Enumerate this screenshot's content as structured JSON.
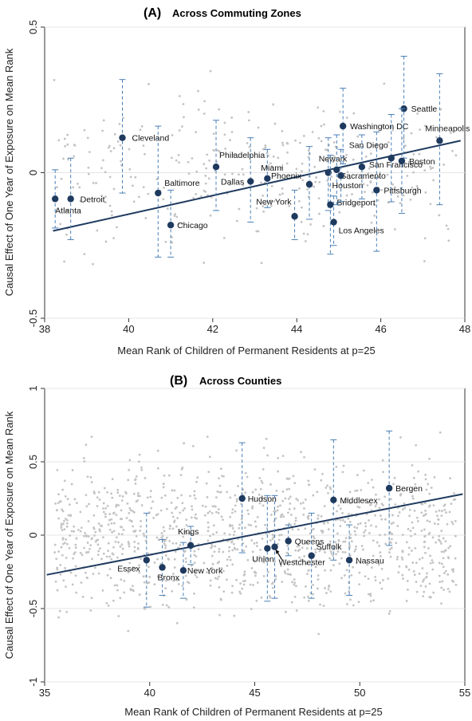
{
  "chart_data": [
    {
      "type": "scatter",
      "panel_label": "(A)",
      "title": "Across Commuting Zones",
      "xlabel": "Mean Rank of Children of Permanent Residents at p=25",
      "ylabel": "Causal Effect of One Year of Exposure on Mean Rank",
      "xlim": [
        38,
        48
      ],
      "ylim": [
        -0.5,
        0.5
      ],
      "x_ticks": [
        "38",
        "40",
        "42",
        "44",
        "46",
        "48"
      ],
      "y_ticks": [
        "-0.5",
        "0",
        "0.5"
      ],
      "grid": "horizontal",
      "fit_line": {
        "x": [
          38.2,
          47.9
        ],
        "y": [
          -0.2,
          0.11
        ]
      },
      "highlighted": [
        {
          "label": "Atlanta",
          "x": 38.25,
          "y": -0.09,
          "lo": -0.19,
          "hi": 0.01
        },
        {
          "label": "Detroit",
          "x": 38.62,
          "y": -0.09,
          "lo": -0.23,
          "hi": 0.05
        },
        {
          "label": "Cleveland",
          "x": 39.85,
          "y": 0.12,
          "lo": -0.07,
          "hi": 0.32
        },
        {
          "label": "Baltimore",
          "x": 40.7,
          "y": -0.07,
          "lo": -0.29,
          "hi": 0.16
        },
        {
          "label": "Chicago",
          "x": 41.0,
          "y": -0.18,
          "lo": -0.29,
          "hi": -0.06
        },
        {
          "label": "Philadelphia",
          "x": 42.08,
          "y": 0.02,
          "lo": -0.13,
          "hi": 0.18
        },
        {
          "label": "Dallas",
          "x": 42.9,
          "y": -0.03,
          "lo": -0.17,
          "hi": 0.12
        },
        {
          "label": "Miami",
          "x": 43.3,
          "y": -0.02,
          "lo": -0.12,
          "hi": 0.08
        },
        {
          "label": "New York",
          "x": 43.95,
          "y": -0.15,
          "lo": -0.23,
          "hi": -0.06
        },
        {
          "label": "Phoenix",
          "x": 44.3,
          "y": -0.04,
          "lo": -0.16,
          "hi": 0.09
        },
        {
          "label": "Newark",
          "x": 44.75,
          "y": 0.0,
          "lo": -0.13,
          "hi": 0.12
        },
        {
          "label": "Bridgeport",
          "x": 44.8,
          "y": -0.11,
          "lo": -0.28,
          "hi": 0.06
        },
        {
          "label": "Los Angeles",
          "x": 44.88,
          "y": -0.17,
          "lo": -0.25,
          "hi": -0.08
        },
        {
          "label": "Sacramento",
          "x": 44.95,
          "y": 0.01,
          "lo": -0.11,
          "hi": 0.13
        },
        {
          "label": "Houston",
          "x": 45.05,
          "y": -0.01,
          "lo": -0.1,
          "hi": 0.08
        },
        {
          "label": "Washington DC",
          "x": 45.1,
          "y": 0.16,
          "lo": 0.03,
          "hi": 0.29
        },
        {
          "label": "San Francisco",
          "x": 45.55,
          "y": 0.02,
          "lo": -0.09,
          "hi": 0.13
        },
        {
          "label": "Pittsburgh",
          "x": 45.9,
          "y": -0.06,
          "lo": -0.27,
          "hi": 0.14
        },
        {
          "label": "San Diego",
          "x": 46.25,
          "y": 0.05,
          "lo": -0.1,
          "hi": 0.2
        },
        {
          "label": "Seattle",
          "x": 46.55,
          "y": 0.22,
          "lo": 0.05,
          "hi": 0.4
        },
        {
          "label": "Boston",
          "x": 46.5,
          "y": 0.04,
          "lo": -0.14,
          "hi": 0.22
        },
        {
          "label": "Minneapolis",
          "x": 47.4,
          "y": 0.11,
          "lo": -0.11,
          "hi": 0.34
        }
      ]
    },
    {
      "type": "scatter",
      "panel_label": "(B)",
      "title": "Across Counties",
      "xlabel": "Mean Rank of Children of Permanent Residents at p=25",
      "ylabel": "Causal Effect of One Year of Exposure on Mean Rank",
      "xlim": [
        35,
        55
      ],
      "ylim": [
        -1,
        1
      ],
      "x_ticks": [
        "35",
        "40",
        "45",
        "50",
        "55"
      ],
      "y_ticks": [
        "-1",
        "-0.5",
        "0",
        "0.5",
        "1"
      ],
      "grid": "horizontal",
      "fit_line": {
        "x": [
          35.1,
          54.9
        ],
        "y": [
          -0.27,
          0.28
        ]
      },
      "highlighted": [
        {
          "label": "Essex",
          "x": 39.85,
          "y": -0.17,
          "lo": -0.49,
          "hi": 0.15
        },
        {
          "label": "Bronx",
          "x": 40.6,
          "y": -0.22,
          "lo": -0.41,
          "hi": -0.03
        },
        {
          "label": "Kings",
          "x": 41.95,
          "y": -0.07,
          "lo": -0.2,
          "hi": 0.06
        },
        {
          "label": "New York",
          "x": 41.6,
          "y": -0.24,
          "lo": -0.43,
          "hi": -0.05
        },
        {
          "label": "Hudson",
          "x": 44.4,
          "y": 0.25,
          "lo": -0.12,
          "hi": 0.63
        },
        {
          "label": "Union",
          "x": 45.6,
          "y": -0.09,
          "lo": -0.45,
          "hi": 0.27
        },
        {
          "label": "Westchester",
          "x": 45.95,
          "y": -0.08,
          "lo": -0.43,
          "hi": 0.27
        },
        {
          "label": "Queens",
          "x": 46.6,
          "y": -0.04,
          "lo": -0.14,
          "hi": 0.07
        },
        {
          "label": "Suffolk",
          "x": 47.7,
          "y": -0.14,
          "lo": -0.43,
          "hi": 0.15
        },
        {
          "label": "Nassau",
          "x": 49.5,
          "y": -0.17,
          "lo": -0.41,
          "hi": 0.07
        },
        {
          "label": "Middlesex",
          "x": 48.75,
          "y": 0.24,
          "lo": -0.17,
          "hi": 0.65
        },
        {
          "label": "Bergen",
          "x": 51.4,
          "y": 0.32,
          "lo": -0.07,
          "hi": 0.71
        }
      ]
    }
  ]
}
